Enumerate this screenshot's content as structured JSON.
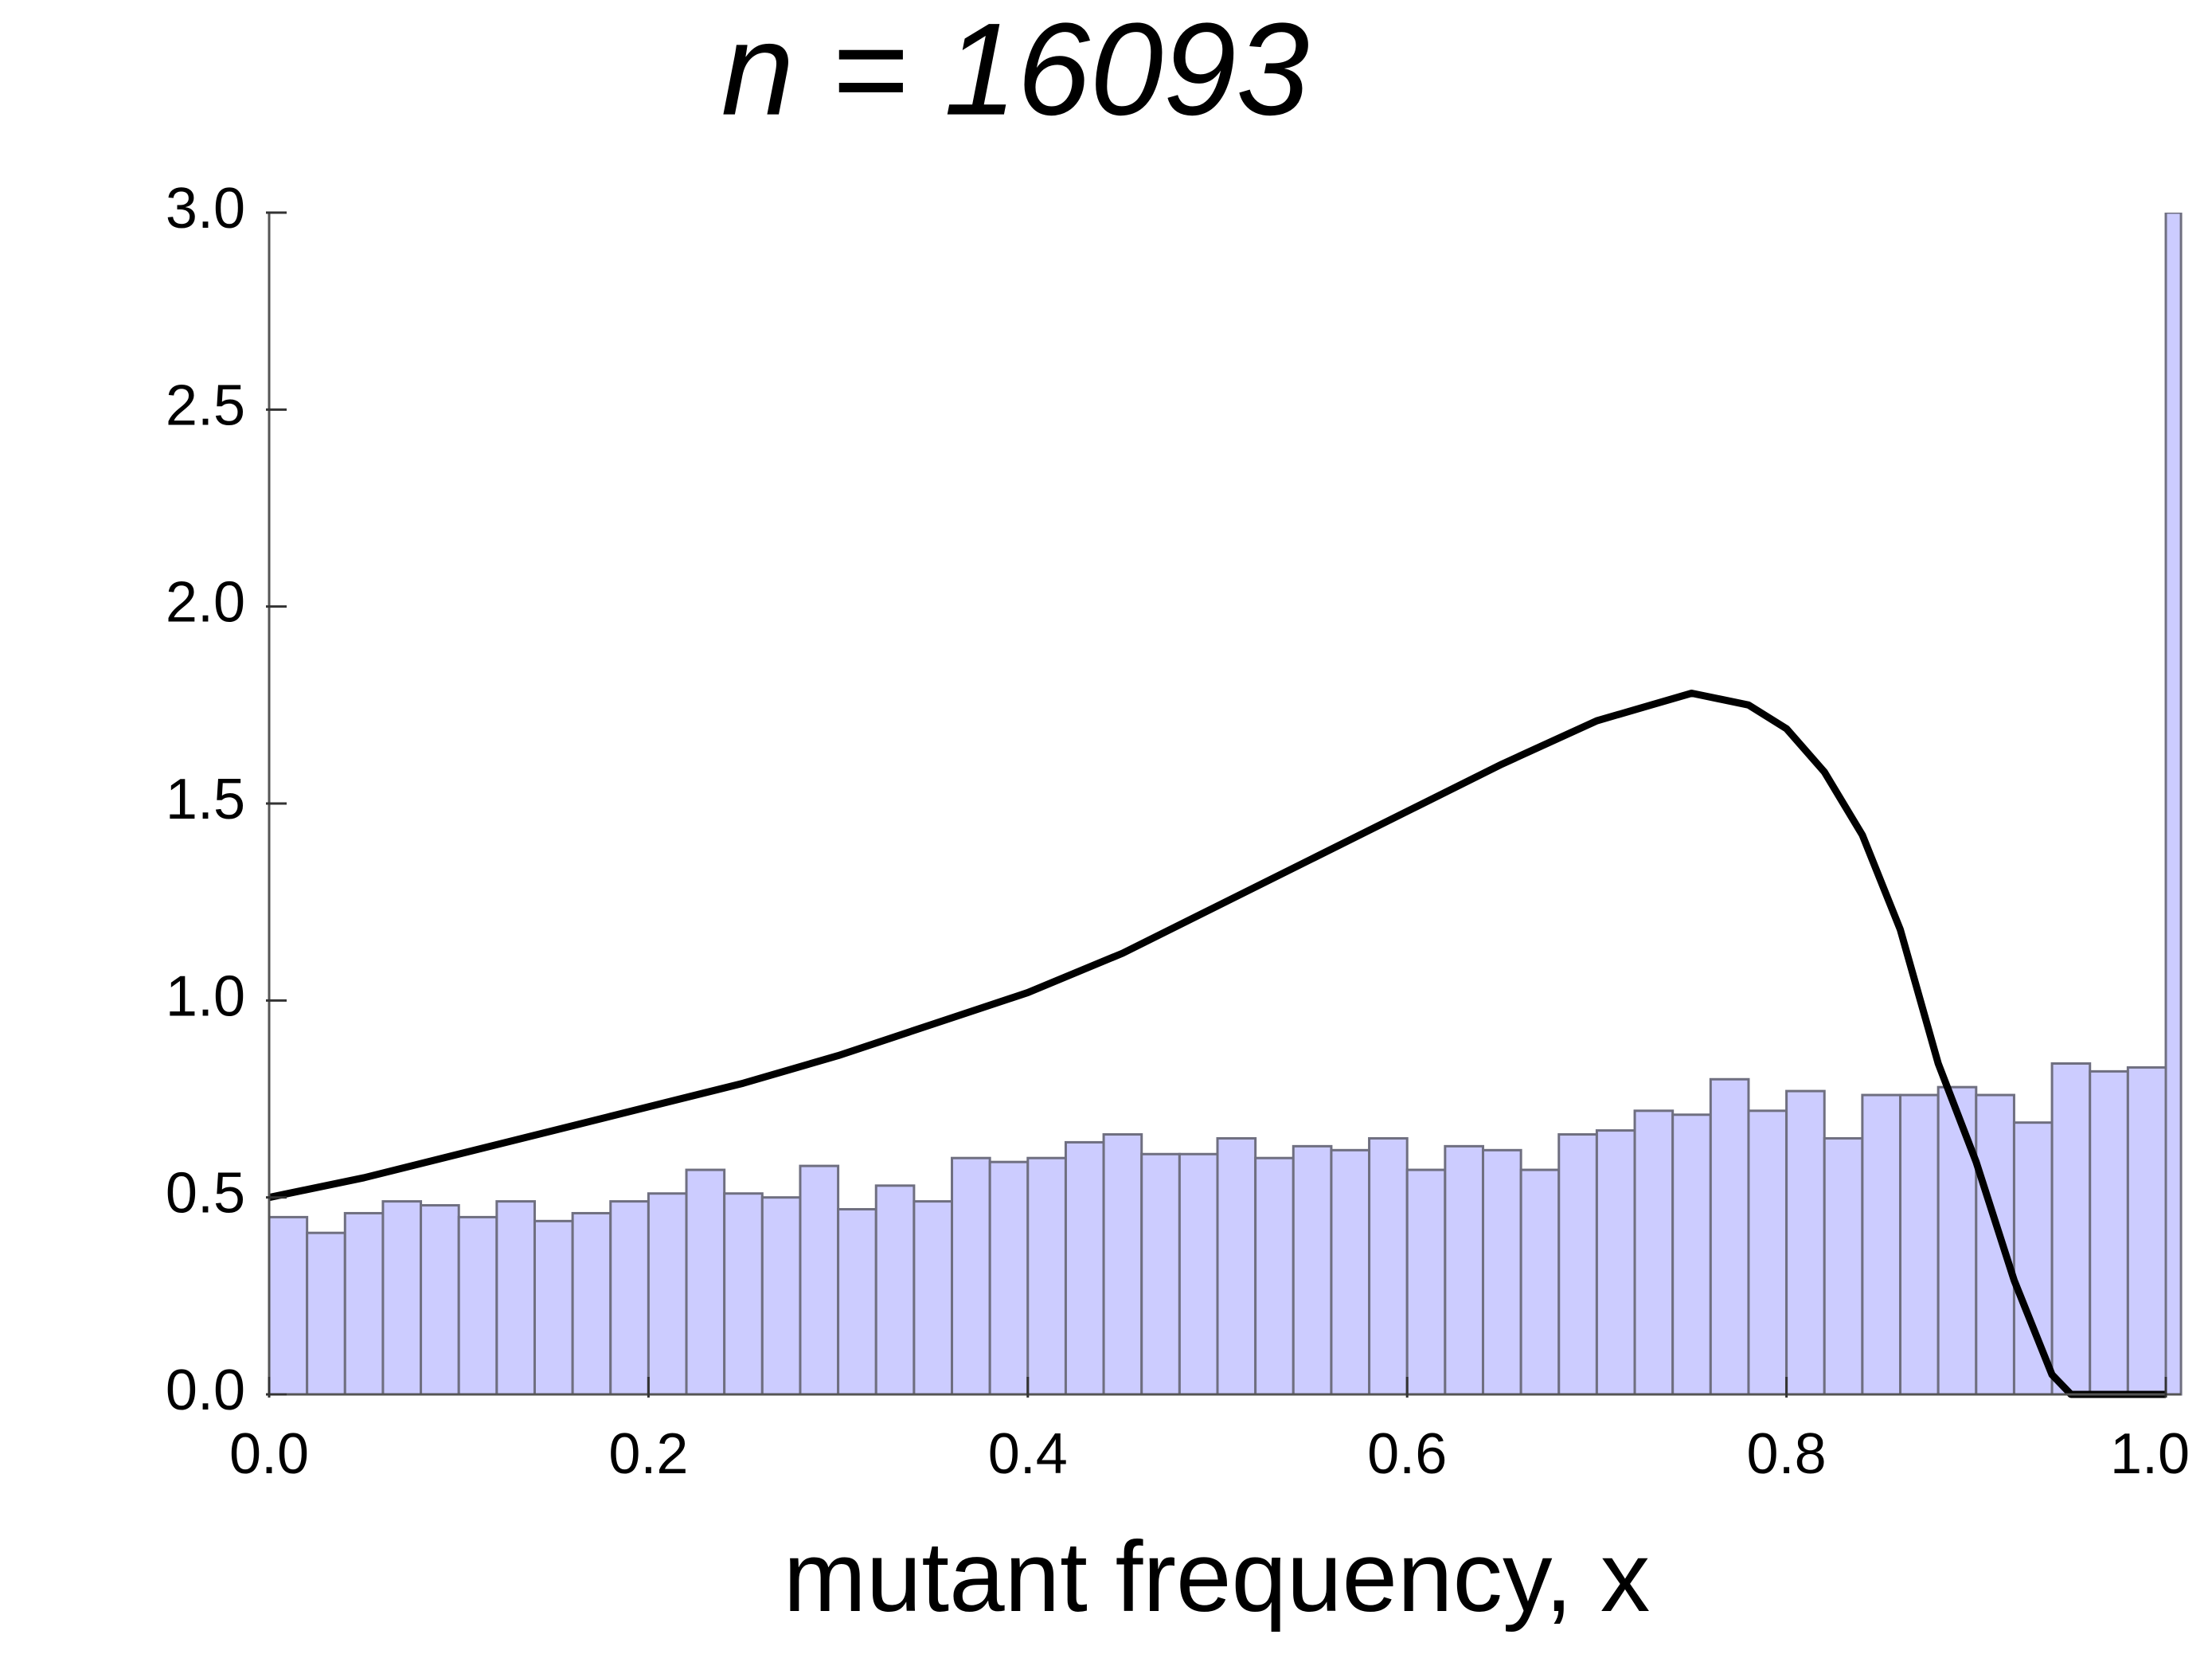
{
  "chart_data": [
    {
      "type": "histogram",
      "title": "n = 16093",
      "xlabel": "mutant frequency, x",
      "color": "#ccccff",
      "edgecolor": "#6f6f80",
      "bins": [
        0,
        0.02,
        0.04,
        0.06,
        0.08,
        0.1,
        0.12,
        0.14,
        0.16,
        0.18,
        0.2,
        0.22,
        0.24,
        0.26,
        0.28,
        0.3,
        0.32,
        0.34,
        0.36,
        0.38,
        0.4,
        0.42,
        0.44,
        0.46,
        0.48,
        0.5,
        0.52,
        0.54,
        0.56,
        0.58,
        0.6,
        0.62,
        0.64,
        0.66,
        0.68,
        0.7,
        0.72,
        0.74,
        0.76,
        0.78,
        0.8,
        0.82,
        0.84,
        0.86,
        0.88,
        0.9,
        0.92,
        0.94,
        0.96,
        0.98,
        1.0,
        1.008
      ],
      "values": [
        0.45,
        0.41,
        0.46,
        0.49,
        0.48,
        0.45,
        0.49,
        0.44,
        0.46,
        0.49,
        0.51,
        0.57,
        0.51,
        0.5,
        0.58,
        0.47,
        0.53,
        0.49,
        0.6,
        0.59,
        0.6,
        0.64,
        0.66,
        0.61,
        0.61,
        0.65,
        0.6,
        0.63,
        0.62,
        0.65,
        0.57,
        0.63,
        0.62,
        0.57,
        0.66,
        0.67,
        0.72,
        0.71,
        0.8,
        0.72,
        0.77,
        0.65,
        0.76,
        0.76,
        0.78,
        0.76,
        0.69,
        0.84,
        0.82,
        0.83,
        3.0
      ],
      "xlim": [
        0,
        1.008
      ],
      "ylim": [
        0,
        3
      ],
      "xticks": [
        {
          "value": 0,
          "label": "0.0"
        },
        0.2,
        0.4,
        0.6,
        0.8,
        {
          "value": 1,
          "label": "1.0"
        }
      ],
      "yticks": [
        {
          "value": 0,
          "label": "0.0"
        },
        0.5,
        {
          "value": 1,
          "label": "1.0"
        },
        1.5,
        {
          "value": 2,
          "label": "2.0"
        },
        2.5,
        {
          "value": 3,
          "label": "3.0"
        }
      ]
    },
    {
      "type": "line",
      "color": "#000000",
      "x": [
        0,
        0.05,
        0.1,
        0.15,
        0.2,
        0.25,
        0.3,
        0.35,
        0.4,
        0.45,
        0.5,
        0.55,
        0.6,
        0.65,
        0.7,
        0.75,
        0.78,
        0.8,
        0.82,
        0.84,
        0.86,
        0.88,
        0.9,
        0.92,
        0.94,
        0.95,
        1.0
      ],
      "values": [
        0.5,
        0.55,
        0.61,
        0.67,
        0.73,
        0.79,
        0.86,
        0.94,
        1.02,
        1.12,
        1.24,
        1.36,
        1.48,
        1.6,
        1.71,
        1.78,
        1.75,
        1.69,
        1.58,
        1.42,
        1.18,
        0.84,
        0.59,
        0.29,
        0.05,
        0,
        0
      ]
    }
  ]
}
